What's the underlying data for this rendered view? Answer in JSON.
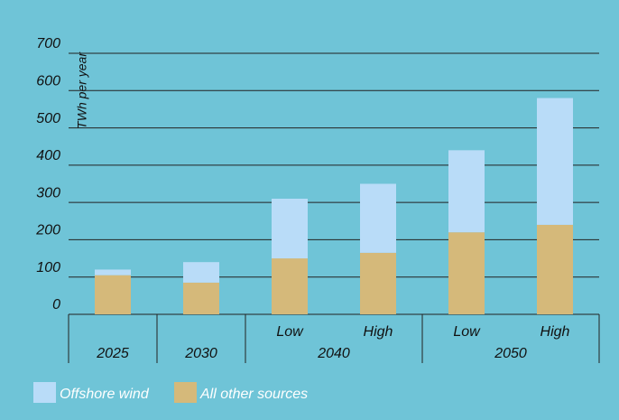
{
  "chart_data": {
    "type": "stacked_bar",
    "y_label": "TWh per year",
    "categories": [
      null,
      null,
      "Low",
      "High",
      "Low",
      "High"
    ],
    "groups": [
      {
        "label": "2025",
        "size": 1
      },
      {
        "label": "2030",
        "size": 1
      },
      {
        "label": "2040",
        "size": 2
      },
      {
        "label": "2050",
        "size": 2
      }
    ],
    "series": [
      {
        "name": "Offshore wind",
        "color": "#b9dcf8",
        "values": [
          15,
          55,
          160,
          185,
          220,
          340
        ]
      },
      {
        "name": "All other sources",
        "color": "#d5b97a",
        "values": [
          105,
          85,
          150,
          165,
          220,
          240
        ]
      }
    ],
    "ylim": [
      0,
      700
    ],
    "yticks": [
      0,
      100,
      200,
      300,
      400,
      500,
      600,
      700
    ],
    "grid": true
  }
}
